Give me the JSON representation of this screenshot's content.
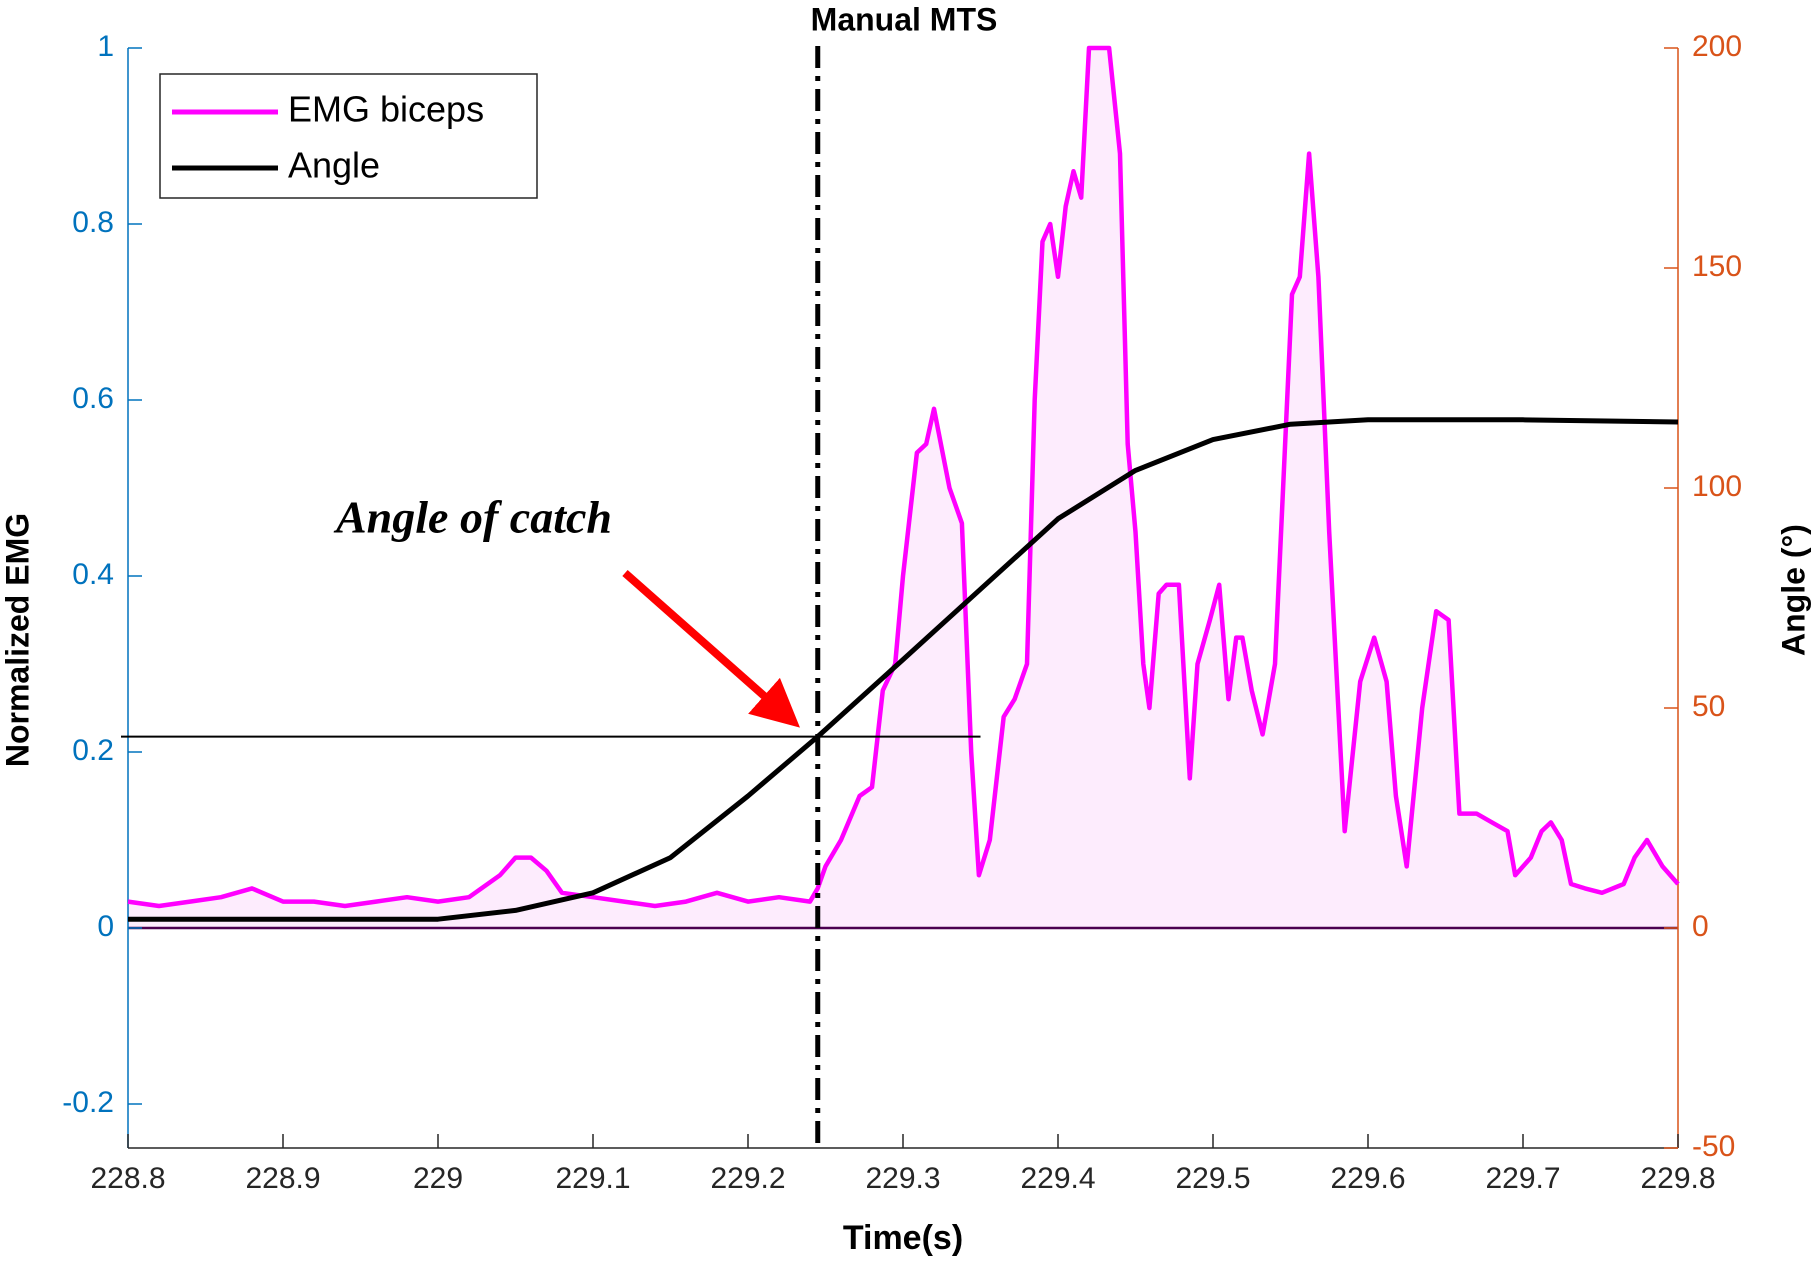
{
  "chart_data": {
    "type": "line",
    "title": "Manual MTS",
    "xlabel": "Time(s)",
    "ylabel": "Normalized EMG",
    "y2label": "Angle (°)",
    "xlim": [
      228.8,
      229.8
    ],
    "xticks": [
      228.8,
      228.9,
      229,
      229.1,
      229.2,
      229.3,
      229.4,
      229.5,
      229.6,
      229.7,
      229.8
    ],
    "ylim": [
      -0.25,
      1
    ],
    "yticks": [
      -0.2,
      0,
      0.2,
      0.4,
      0.6,
      0.8,
      1
    ],
    "y2lim": [
      -50,
      200
    ],
    "y2ticks": [
      -50,
      0,
      50,
      100,
      150,
      200
    ],
    "legend": "upper left",
    "series": [
      {
        "name": "EMG biceps",
        "color": "#ff00ff",
        "fill": "#fdecfd",
        "axis": "y",
        "x": [
          228.8,
          228.82,
          228.84,
          228.86,
          228.88,
          228.9,
          228.92,
          228.94,
          228.96,
          228.98,
          229,
          229.02,
          229.04,
          229.05,
          229.06,
          229.07,
          229.08,
          229.1,
          229.12,
          229.14,
          229.16,
          229.18,
          229.2,
          229.22,
          229.24,
          229.245,
          229.25,
          229.26,
          229.272,
          229.28,
          229.287,
          229.295,
          229.3,
          229.309,
          229.315,
          229.32,
          229.33,
          229.338,
          229.344,
          229.349,
          229.356,
          229.365,
          229.372,
          229.38,
          229.385,
          229.39,
          229.395,
          229.4,
          229.405,
          229.41,
          229.415,
          229.42,
          229.433,
          229.44,
          229.445,
          229.45,
          229.455,
          229.459,
          229.465,
          229.47,
          229.478,
          229.485,
          229.49,
          229.498,
          229.504,
          229.51,
          229.515,
          229.519,
          229.525,
          229.532,
          229.54,
          229.551,
          229.556,
          229.562,
          229.568,
          229.575,
          229.585,
          229.595,
          229.604,
          229.612,
          229.618,
          229.625,
          229.635,
          229.644,
          229.652,
          229.659,
          229.67,
          229.68,
          229.69,
          229.695,
          229.705,
          229.712,
          229.718,
          229.725,
          229.731,
          229.74,
          229.751,
          229.765,
          229.772,
          229.78,
          229.79,
          229.8
        ],
        "values": [
          0.03,
          0.025,
          0.03,
          0.035,
          0.045,
          0.03,
          0.03,
          0.025,
          0.03,
          0.035,
          0.03,
          0.035,
          0.06,
          0.08,
          0.08,
          0.065,
          0.04,
          0.035,
          0.03,
          0.025,
          0.03,
          0.04,
          0.03,
          0.035,
          0.03,
          0.045,
          0.07,
          0.1,
          0.15,
          0.16,
          0.27,
          0.3,
          0.4,
          0.54,
          0.55,
          0.59,
          0.5,
          0.46,
          0.2,
          0.06,
          0.1,
          0.24,
          0.26,
          0.3,
          0.6,
          0.78,
          0.8,
          0.74,
          0.82,
          0.86,
          0.83,
          1,
          1,
          0.88,
          0.55,
          0.45,
          0.3,
          0.25,
          0.38,
          0.39,
          0.39,
          0.17,
          0.3,
          0.35,
          0.39,
          0.26,
          0.33,
          0.33,
          0.27,
          0.22,
          0.3,
          0.72,
          0.74,
          0.88,
          0.74,
          0.45,
          0.11,
          0.28,
          0.33,
          0.28,
          0.15,
          0.07,
          0.25,
          0.36,
          0.35,
          0.13,
          0.13,
          0.12,
          0.11,
          0.06,
          0.08,
          0.11,
          0.12,
          0.1,
          0.05,
          0.045,
          0.04,
          0.05,
          0.08,
          0.1,
          0.07,
          0.05
        ]
      },
      {
        "name": "Angle",
        "color": "#000000",
        "axis": "y2",
        "x": [
          228.8,
          228.9,
          229,
          229.05,
          229.1,
          229.15,
          229.2,
          229.245,
          229.3,
          229.35,
          229.4,
          229.45,
          229.5,
          229.55,
          229.6,
          229.7,
          229.8
        ],
        "values": [
          2,
          2,
          2,
          4,
          8,
          16,
          30,
          43.5,
          61,
          77,
          93,
          104,
          111,
          114.5,
          115.5,
          115.5,
          115
        ]
      }
    ],
    "annotations": [
      {
        "text": "Manual MTS",
        "x": 229.245
      },
      {
        "text": "Angle of catch",
        "y2": 43.5,
        "x_end": 229.35
      }
    ]
  }
}
